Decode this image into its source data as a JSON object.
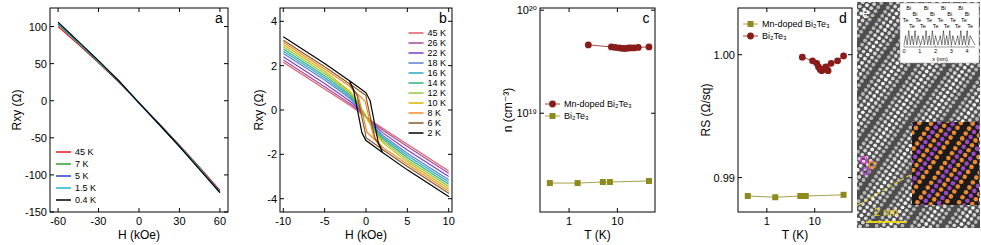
{
  "chart_data": [
    {
      "type": "line",
      "title": "a",
      "xlabel": "H (kOe)",
      "ylabel": "Rxy (Ω)",
      "x": [
        -60,
        -45,
        -30,
        -15,
        0,
        15,
        30,
        45,
        60
      ],
      "xlim": [
        -66,
        66
      ],
      "xticks": [
        -60,
        -30,
        0,
        30,
        60
      ],
      "ylim": [
        -150,
        125
      ],
      "yticks": [
        -150,
        -100,
        -50,
        0,
        50,
        100
      ],
      "legend": "lower left",
      "series": [
        {
          "name": "45 K",
          "color": "#e41a1c",
          "values": [
            100,
            76,
            51,
            25,
            -3,
            -31,
            -60,
            -90,
            -121
          ]
        },
        {
          "name": "7 K",
          "color": "#2ca02c",
          "values": [
            103,
            78,
            52,
            26,
            -3,
            -32,
            -61,
            -91,
            -123
          ]
        },
        {
          "name": "5 K",
          "color": "#1f3fd6",
          "values": [
            104,
            79,
            53,
            26,
            -3,
            -32,
            -61,
            -92,
            -123
          ]
        },
        {
          "name": "1.5 K",
          "color": "#1fb7c9",
          "values": [
            105,
            79,
            53,
            27,
            -3,
            -32,
            -62,
            -92,
            -124
          ]
        },
        {
          "name": "0.4 K",
          "color": "#000000",
          "values": [
            106,
            80,
            54,
            27,
            -3,
            -32,
            -62,
            -93,
            -124
          ]
        }
      ]
    },
    {
      "type": "line",
      "title": "b",
      "xlabel": "H (kOe)",
      "ylabel": "Rxy (Ω)",
      "xlim": [
        -10.4,
        10.4
      ],
      "xticks": [
        -10,
        -5,
        0,
        5,
        10
      ],
      "ylim": [
        -4.6,
        4.6
      ],
      "yticks": [
        -4,
        -2,
        0,
        2,
        4
      ],
      "legend": "upper right",
      "series": [
        {
          "name": "45 K",
          "color": "#e35d6a",
          "x": [
            -10,
            -5,
            -2,
            -1,
            0,
            1,
            2,
            5,
            10
          ],
          "values": [
            2.15,
            0.95,
            0.22,
            -0.04,
            -0.3,
            -0.57,
            -0.82,
            -1.55,
            -2.75
          ]
        },
        {
          "name": "26 K",
          "color": "#a54a9e",
          "x": [
            -10,
            -5,
            -2,
            -1,
            0,
            1,
            2,
            5,
            10
          ],
          "values": [
            2.25,
            1.05,
            0.3,
            0.02,
            -0.3,
            -0.62,
            -0.9,
            -1.65,
            -2.85
          ]
        },
        {
          "name": "22 K",
          "color": "#7a3fbf",
          "x": [
            -10,
            -5,
            -2,
            -1,
            0,
            1,
            2,
            5,
            10
          ],
          "values": [
            2.4,
            1.2,
            0.42,
            0.09,
            -0.3,
            -0.69,
            -1.02,
            -1.8,
            -3.0
          ]
        },
        {
          "name": "18 K",
          "color": "#5b7fd4",
          "x": [
            -10,
            -5,
            -2,
            -1,
            0,
            1,
            2,
            5,
            10
          ],
          "values": [
            2.55,
            1.35,
            0.54,
            0.17,
            -0.3,
            -0.77,
            -1.14,
            -1.95,
            -3.15
          ]
        },
        {
          "name": "16 K",
          "color": "#2aa7c9",
          "x": [
            -10,
            -5,
            -2,
            -1,
            0,
            1,
            2,
            5,
            10
          ],
          "values": [
            2.65,
            1.45,
            0.62,
            0.22,
            -0.3,
            -0.82,
            -1.22,
            -2.05,
            -3.25
          ]
        },
        {
          "name": "14 K",
          "color": "#2fb37a",
          "x": [
            -10,
            -5,
            -2,
            -1,
            0,
            1,
            2,
            5,
            10
          ],
          "values": [
            2.75,
            1.55,
            0.7,
            0.27,
            -0.3,
            -0.87,
            -1.3,
            -2.15,
            -3.35
          ]
        },
        {
          "name": "12 K",
          "color": "#8cc63f",
          "x": [
            -10,
            -5,
            -2,
            -1,
            0,
            1,
            2,
            5,
            10
          ],
          "values": [
            2.85,
            1.65,
            0.78,
            0.32,
            -0.3,
            -0.92,
            -1.38,
            -2.25,
            -3.45
          ]
        },
        {
          "name": "10 K",
          "color": "#d4b400",
          "x": [
            -10,
            -5,
            -2,
            -1,
            0,
            1,
            2,
            5,
            10
          ],
          "values": [
            2.95,
            1.75,
            0.86,
            0.37,
            -0.3,
            -0.97,
            -1.46,
            -2.35,
            -3.55
          ]
        },
        {
          "name": "8 K",
          "color": "#f08c2a",
          "x": [
            -10,
            -5,
            -2,
            -0.1,
            0.4,
            0.9,
            2,
            5,
            10,
            5,
            2,
            0.1,
            -0.4,
            -0.9,
            -2,
            -5,
            -10
          ],
          "values": [
            3.05,
            1.85,
            1.08,
            0.39,
            -0.4,
            -1.18,
            -1.68,
            -2.45,
            -3.65,
            -2.45,
            -1.68,
            -0.99,
            -0.2,
            0.58,
            1.08,
            1.85,
            3.05
          ]
        },
        {
          "name": "6 K",
          "color": "#8b5a2b",
          "x": [
            -10,
            -5,
            -2,
            0,
            0.1,
            0.6,
            1.1,
            2,
            5,
            10,
            5,
            2,
            0,
            -0.1,
            -0.6,
            -1.1,
            -2,
            -5,
            -10
          ],
          "values": [
            3.15,
            1.95,
            1.18,
            0.65,
            0.41,
            -0.44,
            -1.3,
            -1.78,
            -2.55,
            -3.75,
            -2.55,
            -1.78,
            -1.25,
            -1.01,
            -0.16,
            0.7,
            1.18,
            1.95,
            3.15
          ]
        },
        {
          "name": "2 K",
          "color": "#000000",
          "x": [
            -10,
            -5,
            -2,
            0,
            0.5,
            1,
            1.5,
            2,
            5,
            10,
            5,
            2,
            0,
            -0.5,
            -1,
            -1.5,
            -2,
            -5,
            -10
          ],
          "values": [
            3.3,
            2.1,
            1.32,
            0.78,
            0.42,
            -0.54,
            -1.5,
            -1.92,
            -2.7,
            -3.9,
            -2.7,
            -1.92,
            -1.38,
            -1.02,
            -0.06,
            0.9,
            1.32,
            2.1,
            3.3
          ]
        }
      ]
    },
    {
      "type": "line",
      "title": "c",
      "xlabel": "T (K)",
      "ylabel": "n (cm⁻³)",
      "log": true,
      "xlim": [
        0.25,
        60
      ],
      "xticks": [
        1,
        10
      ],
      "ylim": [
        1.1e+18,
        1.05e+20
      ],
      "yticks": [
        {
          "value": 1e+19,
          "label": "10¹⁹"
        },
        {
          "value": 1e+20,
          "label": "10²⁰"
        }
      ],
      "legend": "center left",
      "series": [
        {
          "name": "Mn-doped Bi₂Te₃",
          "color": "#8b1a1a",
          "marker": "circle",
          "x": [
            2.5,
            7.5,
            9,
            11,
            13,
            15,
            17,
            19,
            22,
            27,
            45
          ],
          "values": [
            4.6e+19,
            4.4e+19,
            4.35e+19,
            4.3e+19,
            4.25e+19,
            4.25e+19,
            4.3e+19,
            4.3e+19,
            4.3e+19,
            4.35e+19,
            4.4e+19
          ]
        },
        {
          "name": "Bi₂Te₃",
          "color": "#8f8a1e",
          "marker": "square",
          "x": [
            0.4,
            1.5,
            5,
            7,
            45
          ],
          "values": [
            2.1e+18,
            2.1e+18,
            2.15e+18,
            2.15e+18,
            2.2e+18
          ]
        }
      ]
    },
    {
      "type": "line",
      "title": "d",
      "xlabel": "T (K)",
      "ylabel": "RS (Ω/sq)",
      "log": "x",
      "xlim": [
        0.25,
        60
      ],
      "xticks": [
        1,
        10
      ],
      "ylim": [
        0.9872,
        1.0038
      ],
      "yticks": [
        0.99,
        {
          "value": 1,
          "label": "1.00"
        }
      ],
      "legend": "upper left",
      "series": [
        {
          "name": "Mn-doped Bi₂Te₃",
          "color": "#8f8a1e",
          "marker": "square",
          "x": [
            0.4,
            1.5,
            5,
            6.5,
            40
          ],
          "values": [
            0.9885,
            0.9884,
            0.9885,
            0.9885,
            0.9886
          ]
        },
        {
          "name": "Bi₂Te₃",
          "color": "#8b1a1a",
          "marker": "circle",
          "x": [
            5.5,
            9,
            11,
            12,
            13,
            14,
            15,
            17,
            19,
            22,
            30,
            40
          ],
          "values": [
            0.9998,
            0.9995,
            0.9993,
            0.999,
            0.9988,
            0.9987,
            0.9988,
            0.999,
            0.9987,
            0.9993,
            0.9995,
            0.9999
          ]
        }
      ]
    }
  ],
  "image": {
    "title": "e",
    "scale_bar": "2 nm",
    "profile": {
      "xlabel": "x (nm)",
      "xlim": [
        0,
        4.5
      ],
      "xticks": [
        0,
        1,
        2,
        3,
        4
      ],
      "peaks": [
        {
          "label": "Bi",
          "x": [
            0.3,
            0.7,
            1.4,
            1.8,
            2.5,
            2.9,
            3.6,
            4.0
          ]
        },
        {
          "label": "Te",
          "x": [
            0.1,
            0.5,
            0.9,
            1.2,
            1.6,
            2.0,
            2.3,
            2.7,
            3.1,
            3.4,
            3.8,
            4.2
          ]
        }
      ]
    }
  }
}
